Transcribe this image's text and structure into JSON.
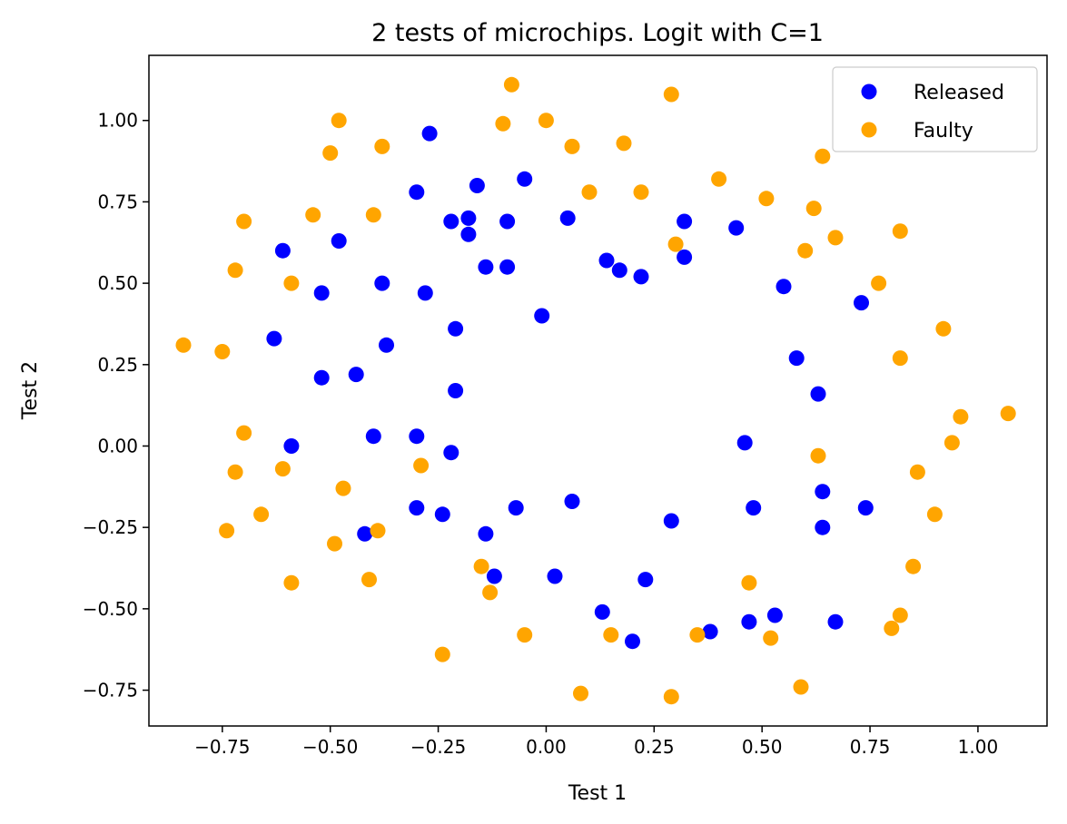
{
  "chart_data": {
    "type": "scatter",
    "title": "2 tests of microchips. Logit with C=1",
    "xlabel": "Test 1",
    "ylabel": "Test 2",
    "xlim": [
      -0.92,
      1.16
    ],
    "ylim": [
      -0.86,
      1.2
    ],
    "xticks": [
      -0.75,
      -0.5,
      -0.25,
      0.0,
      0.25,
      0.5,
      0.75,
      1.0
    ],
    "xtick_labels": [
      "−0.75",
      "−0.50",
      "−0.25",
      "0.00",
      "0.25",
      "0.50",
      "0.75",
      "1.00"
    ],
    "yticks": [
      -0.75,
      -0.5,
      -0.25,
      0.0,
      0.25,
      0.5,
      0.75,
      1.0
    ],
    "ytick_labels": [
      "−0.75",
      "−0.50",
      "−0.25",
      "0.00",
      "0.25",
      "0.50",
      "0.75",
      "1.00"
    ],
    "grid": false,
    "legend_position": "top-right",
    "series": [
      {
        "name": "Released",
        "color": "#0000ff",
        "points": [
          [
            -0.27,
            0.96
          ],
          [
            -0.3,
            0.78
          ],
          [
            -0.16,
            0.8
          ],
          [
            -0.05,
            0.82
          ],
          [
            -0.22,
            0.69
          ],
          [
            -0.18,
            0.7
          ],
          [
            -0.18,
            0.65
          ],
          [
            -0.09,
            0.69
          ],
          [
            -0.14,
            0.55
          ],
          [
            -0.09,
            0.55
          ],
          [
            -0.61,
            0.6
          ],
          [
            -0.48,
            0.63
          ],
          [
            -0.52,
            0.47
          ],
          [
            -0.38,
            0.5
          ],
          [
            -0.28,
            0.47
          ],
          [
            -0.21,
            0.36
          ],
          [
            -0.63,
            0.33
          ],
          [
            -0.37,
            0.31
          ],
          [
            -0.52,
            0.21
          ],
          [
            -0.44,
            0.22
          ],
          [
            -0.21,
            0.17
          ],
          [
            -0.01,
            0.4
          ],
          [
            0.05,
            0.7
          ],
          [
            0.14,
            0.57
          ],
          [
            0.17,
            0.54
          ],
          [
            0.22,
            0.52
          ],
          [
            0.32,
            0.69
          ],
          [
            0.32,
            0.58
          ],
          [
            0.44,
            0.67
          ],
          [
            0.55,
            0.49
          ],
          [
            0.73,
            0.44
          ],
          [
            0.58,
            0.27
          ],
          [
            0.63,
            0.16
          ],
          [
            -0.59,
            0.0
          ],
          [
            -0.4,
            0.03
          ],
          [
            -0.3,
            0.03
          ],
          [
            -0.22,
            -0.02
          ],
          [
            0.46,
            0.01
          ],
          [
            -0.07,
            -0.19
          ],
          [
            0.06,
            -0.17
          ],
          [
            -0.3,
            -0.19
          ],
          [
            -0.24,
            -0.21
          ],
          [
            -0.42,
            -0.27
          ],
          [
            -0.14,
            -0.27
          ],
          [
            0.29,
            -0.23
          ],
          [
            0.48,
            -0.19
          ],
          [
            0.64,
            -0.14
          ],
          [
            0.64,
            -0.25
          ],
          [
            0.74,
            -0.19
          ],
          [
            -0.12,
            -0.4
          ],
          [
            0.02,
            -0.4
          ],
          [
            0.23,
            -0.41
          ],
          [
            0.13,
            -0.51
          ],
          [
            0.2,
            -0.6
          ],
          [
            0.38,
            -0.57
          ],
          [
            0.47,
            -0.54
          ],
          [
            0.53,
            -0.52
          ],
          [
            0.67,
            -0.54
          ]
        ]
      },
      {
        "name": "Faulty",
        "color": "#ffa500",
        "points": [
          [
            -0.48,
            1.0
          ],
          [
            -0.5,
            0.9
          ],
          [
            -0.38,
            0.92
          ],
          [
            -0.08,
            1.11
          ],
          [
            -0.1,
            0.99
          ],
          [
            0.0,
            1.0
          ],
          [
            0.06,
            0.92
          ],
          [
            0.18,
            0.93
          ],
          [
            0.29,
            1.08
          ],
          [
            0.1,
            0.78
          ],
          [
            0.22,
            0.78
          ],
          [
            0.4,
            0.82
          ],
          [
            0.51,
            0.76
          ],
          [
            0.64,
            0.89
          ],
          [
            0.62,
            0.73
          ],
          [
            0.3,
            0.62
          ],
          [
            0.6,
            0.6
          ],
          [
            0.67,
            0.64
          ],
          [
            0.82,
            0.66
          ],
          [
            0.77,
            0.5
          ],
          [
            0.92,
            0.36
          ],
          [
            0.82,
            0.27
          ],
          [
            0.96,
            0.09
          ],
          [
            1.07,
            0.1
          ],
          [
            0.94,
            0.01
          ],
          [
            0.86,
            -0.08
          ],
          [
            0.63,
            -0.03
          ],
          [
            0.9,
            -0.21
          ],
          [
            0.85,
            -0.37
          ],
          [
            0.82,
            -0.52
          ],
          [
            0.8,
            -0.56
          ],
          [
            0.52,
            -0.59
          ],
          [
            0.59,
            -0.74
          ],
          [
            0.47,
            -0.42
          ],
          [
            0.35,
            -0.58
          ],
          [
            0.29,
            -0.77
          ],
          [
            0.08,
            -0.76
          ],
          [
            0.15,
            -0.58
          ],
          [
            -0.05,
            -0.58
          ],
          [
            -0.15,
            -0.37
          ],
          [
            -0.13,
            -0.45
          ],
          [
            -0.24,
            -0.64
          ],
          [
            -0.29,
            -0.06
          ],
          [
            -0.41,
            -0.41
          ],
          [
            -0.39,
            -0.26
          ],
          [
            -0.49,
            -0.3
          ],
          [
            -0.47,
            -0.13
          ],
          [
            -0.59,
            -0.42
          ],
          [
            -0.61,
            -0.07
          ],
          [
            -0.66,
            -0.21
          ],
          [
            -0.74,
            -0.26
          ],
          [
            -0.72,
            -0.08
          ],
          [
            -0.7,
            0.04
          ],
          [
            -0.75,
            0.29
          ],
          [
            -0.84,
            0.31
          ],
          [
            -0.72,
            0.54
          ],
          [
            -0.7,
            0.69
          ],
          [
            -0.59,
            0.5
          ],
          [
            -0.54,
            0.71
          ],
          [
            -0.4,
            0.71
          ]
        ]
      }
    ]
  }
}
